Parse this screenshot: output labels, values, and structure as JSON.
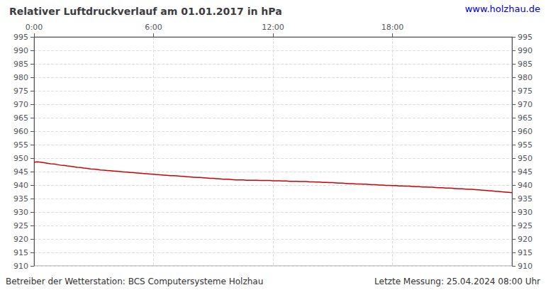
{
  "chart_data": {
    "type": "line",
    "title": "Relativer Luftdruckverlauf am 01.01.2017 in hPa",
    "annotations": [
      "www.holzhau.de",
      "Betreiber der Wetterstation: BCS Computersysteme Holzhau",
      "Letzte Messung: 25.04.2024 08:00 Uhr"
    ],
    "color": "#cc0000",
    "grid": true,
    "xlim": [
      0,
      1440
    ],
    "xticks": [
      {
        "value": 0,
        "label": "0:00"
      },
      {
        "value": 360,
        "label": "6:00"
      },
      {
        "value": 720,
        "label": "12:00"
      },
      {
        "value": 1080,
        "label": "18:00"
      }
    ],
    "ylim": [
      910,
      995
    ],
    "yticks": [
      910,
      915,
      920,
      925,
      930,
      935,
      940,
      945,
      950,
      955,
      960,
      965,
      970,
      975,
      980,
      985,
      990,
      995
    ],
    "x": [
      0,
      10,
      20,
      30,
      40,
      50,
      60,
      70,
      80,
      90,
      100,
      110,
      120,
      130,
      140,
      150,
      160,
      170,
      180,
      190,
      200,
      210,
      220,
      230,
      240,
      250,
      260,
      270,
      280,
      290,
      300,
      310,
      320,
      330,
      340,
      350,
      360,
      370,
      380,
      390,
      400,
      410,
      420,
      430,
      440,
      450,
      460,
      470,
      480,
      490,
      500,
      510,
      520,
      530,
      540,
      550,
      560,
      570,
      580,
      590,
      600,
      610,
      620,
      630,
      640,
      650,
      660,
      670,
      680,
      690,
      700,
      710,
      720,
      730,
      740,
      750,
      760,
      770,
      780,
      790,
      800,
      810,
      820,
      830,
      840,
      850,
      860,
      870,
      880,
      890,
      900,
      910,
      920,
      930,
      940,
      950,
      960,
      970,
      980,
      990,
      1000,
      1010,
      1020,
      1030,
      1040,
      1050,
      1060,
      1070,
      1080,
      1090,
      1100,
      1110,
      1120,
      1130,
      1140,
      1150,
      1160,
      1170,
      1180,
      1190,
      1200,
      1210,
      1220,
      1230,
      1240,
      1250,
      1260,
      1270,
      1280,
      1290,
      1300,
      1310,
      1320,
      1330,
      1340,
      1350,
      1360,
      1370,
      1380,
      1390,
      1400,
      1410,
      1420,
      1430,
      1440
    ],
    "values": [
      948.5,
      948.6,
      948.5,
      948.3,
      948.1,
      947.9,
      947.8,
      947.6,
      947.4,
      947.3,
      947.1,
      947.0,
      946.8,
      946.6,
      946.5,
      946.3,
      946.2,
      946.0,
      945.9,
      945.8,
      945.6,
      945.5,
      945.4,
      945.3,
      945.2,
      945.1,
      945.0,
      944.9,
      944.8,
      944.7,
      944.6,
      944.5,
      944.4,
      944.3,
      944.2,
      944.1,
      944.0,
      943.9,
      943.8,
      943.7,
      943.6,
      943.5,
      943.5,
      943.4,
      943.3,
      943.2,
      943.1,
      943.0,
      942.9,
      942.8,
      942.8,
      942.7,
      942.6,
      942.5,
      942.5,
      942.4,
      942.3,
      942.2,
      942.2,
      942.1,
      942.0,
      941.9,
      941.9,
      941.9,
      941.8,
      941.8,
      941.8,
      941.8,
      941.7,
      941.7,
      941.7,
      941.7,
      941.6,
      941.6,
      941.6,
      941.5,
      941.5,
      941.4,
      941.4,
      941.4,
      941.3,
      941.3,
      941.3,
      941.2,
      941.2,
      941.1,
      941.1,
      941.0,
      941.0,
      940.9,
      940.9,
      940.8,
      940.7,
      940.7,
      940.6,
      940.5,
      940.5,
      940.4,
      940.4,
      940.3,
      940.3,
      940.2,
      940.1,
      940.1,
      940.0,
      940.0,
      939.9,
      939.9,
      939.8,
      939.8,
      939.7,
      939.7,
      939.6,
      939.6,
      939.5,
      939.4,
      939.4,
      939.3,
      939.3,
      939.2,
      939.2,
      939.1,
      939.0,
      939.0,
      938.9,
      938.9,
      938.8,
      938.7,
      938.6,
      938.6,
      938.5,
      938.4,
      938.4,
      938.3,
      938.2,
      938.1,
      938.0,
      937.9,
      937.8,
      937.7,
      937.6,
      937.5,
      937.4,
      937.3,
      937.2
    ]
  }
}
